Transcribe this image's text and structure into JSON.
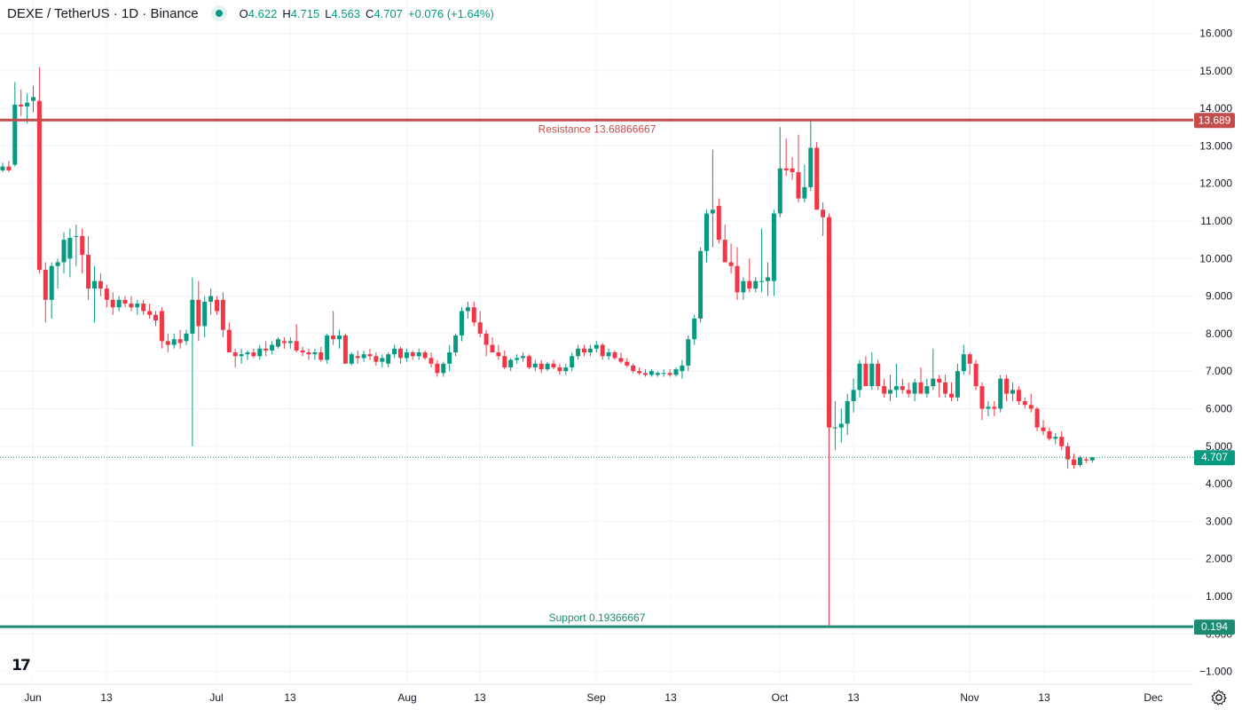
{
  "header": {
    "symbol": "DEXE / TetherUS · 1D · Binance",
    "open_label": "O",
    "open": "4.622",
    "high_label": "H",
    "high": "4.715",
    "low_label": "L",
    "low": "4.563",
    "close_label": "C",
    "close": "4.707",
    "change": "+0.076 (+1.64%)"
  },
  "colors": {
    "up": "#089981",
    "down": "#f23645",
    "resistance": "#c44b4b",
    "support": "#1e8a72",
    "grid": "#f0f3fa",
    "text": "#131722"
  },
  "icons": {
    "logo": "tradingview-logo-icon",
    "settings": "gear-icon",
    "status": "market-status-icon"
  },
  "chart_data": {
    "type": "candlestick",
    "y_ticks": [
      "16.000",
      "15.000",
      "14.000",
      "13.000",
      "12.000",
      "11.000",
      "10.000",
      "9.000",
      "8.000",
      "7.000",
      "6.000",
      "5.000",
      "4.000",
      "3.000",
      "2.000",
      "1.000",
      "0.000",
      "−1.000"
    ],
    "ylim": [
      -1.3,
      16.4
    ],
    "x_ticks": [
      "Jun",
      "13",
      "Jul",
      "13",
      "Aug",
      "13",
      "Sep",
      "13",
      "Oct",
      "13",
      "Nov",
      "13",
      "Dec"
    ],
    "resistance": {
      "label": "Resistance 13.68866667",
      "value": 13.68866667,
      "badge": "13.689"
    },
    "support": {
      "label": "Support 0.19366667",
      "value": 0.19366667,
      "badge": "0.194"
    },
    "last_price": {
      "value": 4.707,
      "badge": "4.707"
    },
    "candles": [
      [
        12.35,
        12.55,
        12.3,
        12.45
      ],
      [
        12.45,
        12.6,
        12.3,
        12.35
      ],
      [
        12.5,
        14.7,
        12.45,
        14.1
      ],
      [
        14.1,
        14.5,
        13.8,
        14.05
      ],
      [
        14.05,
        14.4,
        13.6,
        14.15
      ],
      [
        14.2,
        14.6,
        13.9,
        14.3
      ],
      [
        14.2,
        15.1,
        9.6,
        9.7
      ],
      [
        9.7,
        9.9,
        8.3,
        8.9
      ],
      [
        8.9,
        9.9,
        8.4,
        9.8
      ],
      [
        9.8,
        10.0,
        9.2,
        9.9
      ],
      [
        9.9,
        10.7,
        9.6,
        10.5
      ],
      [
        10.0,
        10.8,
        9.5,
        10.55
      ],
      [
        10.6,
        10.9,
        9.8,
        10.6
      ],
      [
        10.6,
        10.8,
        9.6,
        10.1
      ],
      [
        10.1,
        10.6,
        8.9,
        9.2
      ],
      [
        9.2,
        9.8,
        8.3,
        9.4
      ],
      [
        9.4,
        9.6,
        9.0,
        9.2
      ],
      [
        9.2,
        9.3,
        8.7,
        8.9
      ],
      [
        8.9,
        9.1,
        8.5,
        8.7
      ],
      [
        8.7,
        9.0,
        8.6,
        8.9
      ],
      [
        8.9,
        9.0,
        8.7,
        8.8
      ],
      [
        8.8,
        9.0,
        8.6,
        8.7
      ],
      [
        8.7,
        8.9,
        8.5,
        8.8
      ],
      [
        8.8,
        8.9,
        8.5,
        8.6
      ],
      [
        8.6,
        8.8,
        8.4,
        8.5
      ],
      [
        8.5,
        8.6,
        8.2,
        8.35
      ],
      [
        8.6,
        8.7,
        7.6,
        7.8
      ],
      [
        7.8,
        8.0,
        7.5,
        7.7
      ],
      [
        7.7,
        8.0,
        7.6,
        7.85
      ],
      [
        7.85,
        8.1,
        7.6,
        7.75
      ],
      [
        7.8,
        8.1,
        7.7,
        8.0
      ],
      [
        8.0,
        9.5,
        5.0,
        8.9
      ],
      [
        8.9,
        9.4,
        7.8,
        8.2
      ],
      [
        8.2,
        9.0,
        7.9,
        8.85
      ],
      [
        8.85,
        9.2,
        8.5,
        9.0
      ],
      [
        8.9,
        9.0,
        8.5,
        8.6
      ],
      [
        8.9,
        9.1,
        7.9,
        8.1
      ],
      [
        8.1,
        8.3,
        7.5,
        7.5
      ],
      [
        7.5,
        7.6,
        7.1,
        7.4
      ],
      [
        7.4,
        7.6,
        7.2,
        7.45
      ],
      [
        7.45,
        7.55,
        7.3,
        7.5
      ],
      [
        7.5,
        7.6,
        7.35,
        7.4
      ],
      [
        7.4,
        7.7,
        7.3,
        7.6
      ],
      [
        7.6,
        7.8,
        7.4,
        7.55
      ],
      [
        7.55,
        7.8,
        7.45,
        7.7
      ],
      [
        7.65,
        7.9,
        7.6,
        7.85
      ],
      [
        7.8,
        7.9,
        7.6,
        7.75
      ],
      [
        7.75,
        7.9,
        7.6,
        7.8
      ],
      [
        7.8,
        8.25,
        7.5,
        7.55
      ],
      [
        7.55,
        7.65,
        7.4,
        7.5
      ],
      [
        7.5,
        7.6,
        7.3,
        7.45
      ],
      [
        7.45,
        7.6,
        7.3,
        7.5
      ],
      [
        7.5,
        7.65,
        7.25,
        7.3
      ],
      [
        7.3,
        8.0,
        7.2,
        7.95
      ],
      [
        7.95,
        8.6,
        7.7,
        7.85
      ],
      [
        7.85,
        8.1,
        7.6,
        7.95
      ],
      [
        7.95,
        8.0,
        7.2,
        7.2
      ],
      [
        7.2,
        7.5,
        7.15,
        7.45
      ],
      [
        7.4,
        7.55,
        7.2,
        7.35
      ],
      [
        7.35,
        7.55,
        7.25,
        7.45
      ],
      [
        7.45,
        7.6,
        7.3,
        7.4
      ],
      [
        7.4,
        7.5,
        7.15,
        7.25
      ],
      [
        7.25,
        7.45,
        7.1,
        7.35
      ],
      [
        7.2,
        7.5,
        7.1,
        7.45
      ],
      [
        7.45,
        7.7,
        7.35,
        7.6
      ],
      [
        7.6,
        7.65,
        7.2,
        7.35
      ],
      [
        7.35,
        7.6,
        7.25,
        7.5
      ],
      [
        7.5,
        7.55,
        7.3,
        7.4
      ],
      [
        7.4,
        7.6,
        7.3,
        7.5
      ],
      [
        7.5,
        7.55,
        7.3,
        7.35
      ],
      [
        7.35,
        7.5,
        7.1,
        7.2
      ],
      [
        7.2,
        7.3,
        6.85,
        6.95
      ],
      [
        6.95,
        7.25,
        6.85,
        7.2
      ],
      [
        7.2,
        7.7,
        7.0,
        7.5
      ],
      [
        7.5,
        8.0,
        7.4,
        7.95
      ],
      [
        7.95,
        8.7,
        7.8,
        8.6
      ],
      [
        8.6,
        8.85,
        8.4,
        8.7
      ],
      [
        8.7,
        8.85,
        8.2,
        8.3
      ],
      [
        8.3,
        8.6,
        7.9,
        8.0
      ],
      [
        8.0,
        8.1,
        7.4,
        7.7
      ],
      [
        7.7,
        7.9,
        7.5,
        7.5
      ],
      [
        7.5,
        7.7,
        7.3,
        7.4
      ],
      [
        7.4,
        7.55,
        7.05,
        7.1
      ],
      [
        7.1,
        7.35,
        7.0,
        7.3
      ],
      [
        7.3,
        7.45,
        7.2,
        7.35
      ],
      [
        7.35,
        7.5,
        7.25,
        7.4
      ],
      [
        7.4,
        7.45,
        7.05,
        7.1
      ],
      [
        7.1,
        7.3,
        7.0,
        7.2
      ],
      [
        7.2,
        7.3,
        6.95,
        7.05
      ],
      [
        7.05,
        7.25,
        7.0,
        7.2
      ],
      [
        7.2,
        7.3,
        7.05,
        7.1
      ],
      [
        7.1,
        7.2,
        6.9,
        7.0
      ],
      [
        7.0,
        7.2,
        6.9,
        7.1
      ],
      [
        7.1,
        7.5,
        7.0,
        7.4
      ],
      [
        7.4,
        7.7,
        7.3,
        7.6
      ],
      [
        7.6,
        7.7,
        7.4,
        7.5
      ],
      [
        7.5,
        7.7,
        7.4,
        7.6
      ],
      [
        7.6,
        7.8,
        7.5,
        7.7
      ],
      [
        7.7,
        7.75,
        7.3,
        7.4
      ],
      [
        7.4,
        7.6,
        7.3,
        7.5
      ],
      [
        7.5,
        7.55,
        7.3,
        7.35
      ],
      [
        7.35,
        7.5,
        7.2,
        7.25
      ],
      [
        7.25,
        7.35,
        7.1,
        7.15
      ],
      [
        7.15,
        7.2,
        6.95,
        7.0
      ],
      [
        7.0,
        7.1,
        6.9,
        6.95
      ],
      [
        6.95,
        7.05,
        6.85,
        6.9
      ],
      [
        6.9,
        7.05,
        6.85,
        7.0
      ],
      [
        6.9,
        7.0,
        6.85,
        6.95
      ],
      [
        6.95,
        7.05,
        6.85,
        6.95
      ],
      [
        6.95,
        7.05,
        6.85,
        6.9
      ],
      [
        6.9,
        7.1,
        6.85,
        7.05
      ],
      [
        7.0,
        7.3,
        6.8,
        7.15
      ],
      [
        7.15,
        7.95,
        7.0,
        7.85
      ],
      [
        7.85,
        8.5,
        7.7,
        8.4
      ],
      [
        8.4,
        10.3,
        8.3,
        10.2
      ],
      [
        10.2,
        11.3,
        9.9,
        11.2
      ],
      [
        11.2,
        12.9,
        10.3,
        11.3
      ],
      [
        11.4,
        11.6,
        10.4,
        10.5
      ],
      [
        10.5,
        10.9,
        10.0,
        9.9
      ],
      [
        9.9,
        10.4,
        9.6,
        9.8
      ],
      [
        9.8,
        10.3,
        8.9,
        9.1
      ],
      [
        9.1,
        9.5,
        8.9,
        9.4
      ],
      [
        9.4,
        10.0,
        9.1,
        9.2
      ],
      [
        9.2,
        9.5,
        9.1,
        9.4
      ],
      [
        9.4,
        10.8,
        9.1,
        9.4
      ],
      [
        9.4,
        9.9,
        9.0,
        9.5
      ],
      [
        9.4,
        11.3,
        9.0,
        11.2
      ],
      [
        11.2,
        13.5,
        11.1,
        12.4
      ],
      [
        12.4,
        13.2,
        12.2,
        12.35
      ],
      [
        12.4,
        12.7,
        12.1,
        12.3
      ],
      [
        12.3,
        13.3,
        11.5,
        11.6
      ],
      [
        11.6,
        12.5,
        11.5,
        11.9
      ],
      [
        11.9,
        13.7,
        11.8,
        12.95
      ],
      [
        12.95,
        13.1,
        11.3,
        11.3
      ],
      [
        11.3,
        11.5,
        10.6,
        11.1
      ],
      [
        11.1,
        11.2,
        0.19,
        5.5
      ],
      [
        5.5,
        6.2,
        4.9,
        5.5
      ],
      [
        5.5,
        6.0,
        5.1,
        5.6
      ],
      [
        5.6,
        6.4,
        5.3,
        6.2
      ],
      [
        6.2,
        6.8,
        5.9,
        6.5
      ],
      [
        6.5,
        7.3,
        6.3,
        7.2
      ],
      [
        7.2,
        7.4,
        6.6,
        6.6
      ],
      [
        6.6,
        7.5,
        6.5,
        7.2
      ],
      [
        7.2,
        7.3,
        6.5,
        6.6
      ],
      [
        6.6,
        6.8,
        6.3,
        6.4
      ],
      [
        6.4,
        6.9,
        6.2,
        6.5
      ],
      [
        6.5,
        7.2,
        6.3,
        6.6
      ],
      [
        6.6,
        6.8,
        6.4,
        6.5
      ],
      [
        6.5,
        6.7,
        6.3,
        6.4
      ],
      [
        6.4,
        6.8,
        6.2,
        6.7
      ],
      [
        6.7,
        7.1,
        6.5,
        6.4
      ],
      [
        6.4,
        6.8,
        6.3,
        6.6
      ],
      [
        6.6,
        7.6,
        6.5,
        6.8
      ],
      [
        6.8,
        6.9,
        6.3,
        6.7
      ],
      [
        6.7,
        6.9,
        6.3,
        6.4
      ],
      [
        6.4,
        6.7,
        6.2,
        6.3
      ],
      [
        6.3,
        7.2,
        6.2,
        7.0
      ],
      [
        7.0,
        7.7,
        6.9,
        7.45
      ],
      [
        7.45,
        7.5,
        6.9,
        7.2
      ],
      [
        7.2,
        7.3,
        6.5,
        6.6
      ],
      [
        6.6,
        6.7,
        5.7,
        6.0
      ],
      [
        6.0,
        6.2,
        5.8,
        6.05
      ],
      [
        6.05,
        6.2,
        5.8,
        6.0
      ],
      [
        6.0,
        6.9,
        5.9,
        6.8
      ],
      [
        6.8,
        6.9,
        6.2,
        6.4
      ],
      [
        6.4,
        6.7,
        6.2,
        6.5
      ],
      [
        6.5,
        6.6,
        6.1,
        6.2
      ],
      [
        6.2,
        6.3,
        6.0,
        6.1
      ],
      [
        6.1,
        6.4,
        5.9,
        6.0
      ],
      [
        6.0,
        6.05,
        5.4,
        5.5
      ],
      [
        5.5,
        5.7,
        5.3,
        5.4
      ],
      [
        5.4,
        5.5,
        5.15,
        5.2
      ],
      [
        5.2,
        5.35,
        5.05,
        5.25
      ],
      [
        5.25,
        5.4,
        4.9,
        5.0
      ],
      [
        5.0,
        5.1,
        4.4,
        4.65
      ],
      [
        4.65,
        4.8,
        4.4,
        4.5
      ],
      [
        4.5,
        4.75,
        4.45,
        4.7
      ],
      [
        4.65,
        4.72,
        4.55,
        4.62
      ],
      [
        4.622,
        4.715,
        4.563,
        4.707
      ]
    ]
  }
}
